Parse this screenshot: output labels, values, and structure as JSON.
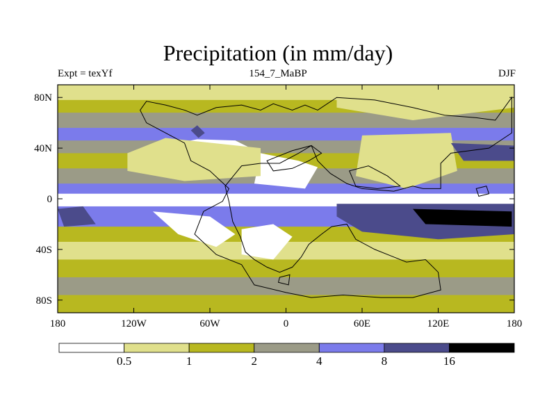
{
  "title": "Precipitation (in mm/day)",
  "left_label": "Expt = texYf",
  "center_label": "154_7_MaBP",
  "right_label": "DJF",
  "chart_data": {
    "type": "heatmap",
    "title": "Precipitation (in mm/day)",
    "xlim": [
      -180,
      180
    ],
    "ylim": [
      -90,
      90
    ],
    "x_ticks": [
      {
        "value": -180,
        "label": "180"
      },
      {
        "value": -120,
        "label": "120W"
      },
      {
        "value": -60,
        "label": "60W"
      },
      {
        "value": 0,
        "label": "0"
      },
      {
        "value": 60,
        "label": "60E"
      },
      {
        "value": 120,
        "label": "120E"
      },
      {
        "value": 180,
        "label": "180"
      }
    ],
    "y_ticks": [
      {
        "value": 80,
        "label": "80N"
      },
      {
        "value": 40,
        "label": "40N"
      },
      {
        "value": 0,
        "label": "0"
      },
      {
        "value": -40,
        "label": "40S"
      },
      {
        "value": -80,
        "label": "80S"
      }
    ],
    "colorbar": {
      "boundaries": [
        "0.5",
        "1",
        "2",
        "4",
        "8",
        "16"
      ],
      "colors": [
        "#ffffff",
        "#e0e08c",
        "#b8b820",
        "#9b9b87",
        "#7b7beb",
        "#4b4b8b",
        "#000000"
      ]
    },
    "zonal_bands": [
      {
        "lat_from": 90,
        "lat_to": 78,
        "level": 1
      },
      {
        "lat_from": 78,
        "lat_to": 68,
        "level": 2
      },
      {
        "lat_from": 68,
        "lat_to": 56,
        "level": 3
      },
      {
        "lat_from": 56,
        "lat_to": 46,
        "level": 4
      },
      {
        "lat_from": 46,
        "lat_to": 36,
        "level": 3
      },
      {
        "lat_from": 36,
        "lat_to": 24,
        "level": 2
      },
      {
        "lat_from": 24,
        "lat_to": 12,
        "level": 3
      },
      {
        "lat_from": 12,
        "lat_to": 4,
        "level": 4
      },
      {
        "lat_from": 4,
        "lat_to": -6,
        "level": 0
      },
      {
        "lat_from": -6,
        "lat_to": -22,
        "level": 4
      },
      {
        "lat_from": -22,
        "lat_to": -34,
        "level": 2
      },
      {
        "lat_from": -34,
        "lat_to": -48,
        "level": 1
      },
      {
        "lat_from": -48,
        "lat_to": -62,
        "level": 2
      },
      {
        "lat_from": -62,
        "lat_to": -76,
        "level": 3
      },
      {
        "lat_from": -76,
        "lat_to": -90,
        "level": 2
      }
    ],
    "regions": [
      {
        "name": "north-african-dry",
        "level": 0,
        "points": [
          [
            -95,
            42
          ],
          [
            -70,
            47
          ],
          [
            -40,
            46
          ],
          [
            -20,
            36
          ],
          [
            -20,
            24
          ],
          [
            -50,
            18
          ],
          [
            -80,
            26
          ]
        ]
      },
      {
        "name": "asian-dry",
        "level": 0,
        "points": [
          [
            -20,
            36
          ],
          [
            10,
            30
          ],
          [
            25,
            25
          ],
          [
            15,
            8
          ],
          [
            -25,
            12
          ]
        ]
      },
      {
        "name": "east-asian-dry",
        "level": 0,
        "points": [
          [
            70,
            42
          ],
          [
            90,
            48
          ],
          [
            120,
            42
          ],
          [
            125,
            28
          ],
          [
            95,
            14
          ],
          [
            70,
            22
          ]
        ]
      },
      {
        "name": "pacific-south-dry",
        "level": 0,
        "points": [
          [
            -105,
            -10
          ],
          [
            -60,
            -14
          ],
          [
            -40,
            -28
          ],
          [
            -55,
            -38
          ],
          [
            -85,
            -28
          ]
        ]
      },
      {
        "name": "south-america-dry",
        "level": 0,
        "points": [
          [
            -35,
            -24
          ],
          [
            -10,
            -20
          ],
          [
            5,
            -30
          ],
          [
            -10,
            -48
          ],
          [
            -35,
            -44
          ]
        ]
      },
      {
        "name": "north-light",
        "level": 1,
        "points": [
          [
            -125,
            36
          ],
          [
            -95,
            48
          ],
          [
            -20,
            40
          ],
          [
            -20,
            18
          ],
          [
            -80,
            14
          ],
          [
            -125,
            22
          ]
        ]
      },
      {
        "name": "ne-asia-light",
        "level": 1,
        "points": [
          [
            60,
            50
          ],
          [
            130,
            52
          ],
          [
            135,
            22
          ],
          [
            95,
            8
          ],
          [
            55,
            18
          ]
        ]
      },
      {
        "name": "arctic-light",
        "level": 1,
        "points": [
          [
            40,
            90
          ],
          [
            180,
            90
          ],
          [
            180,
            72
          ],
          [
            100,
            62
          ],
          [
            40,
            72
          ]
        ]
      },
      {
        "name": "tropical-wet",
        "level": 5,
        "points": [
          [
            40,
            -4
          ],
          [
            180,
            -4
          ],
          [
            180,
            -28
          ],
          [
            120,
            -32
          ],
          [
            60,
            -26
          ],
          [
            40,
            -14
          ]
        ]
      },
      {
        "name": "pacific-wet",
        "level": 6,
        "points": [
          [
            100,
            -8
          ],
          [
            178,
            -10
          ],
          [
            178,
            -22
          ],
          [
            110,
            -20
          ]
        ]
      },
      {
        "name": "east-wet",
        "level": 5,
        "points": [
          [
            130,
            44
          ],
          [
            180,
            42
          ],
          [
            180,
            30
          ],
          [
            140,
            30
          ]
        ]
      },
      {
        "name": "north-blue-spot",
        "level": 5,
        "points": [
          [
            -75,
            54
          ],
          [
            -70,
            58
          ],
          [
            -64,
            52
          ],
          [
            -69,
            48
          ]
        ]
      },
      {
        "name": "west-wet",
        "level": 5,
        "points": [
          [
            -180,
            -8
          ],
          [
            -160,
            -6
          ],
          [
            -150,
            -20
          ],
          [
            -175,
            -22
          ]
        ]
      }
    ],
    "coastlines": [
      {
        "name": "northern-continent",
        "points": [
          [
            -110,
            77
          ],
          [
            -95,
            74
          ],
          [
            -80,
            70
          ],
          [
            -70,
            66
          ],
          [
            -55,
            72
          ],
          [
            -35,
            74
          ],
          [
            -20,
            70
          ],
          [
            -10,
            75
          ],
          [
            5,
            70
          ],
          [
            15,
            74
          ],
          [
            25,
            70
          ],
          [
            40,
            80
          ],
          [
            70,
            78
          ],
          [
            100,
            72
          ],
          [
            125,
            66
          ],
          [
            150,
            64
          ],
          [
            165,
            62
          ],
          [
            178,
            80
          ],
          [
            178,
            52
          ],
          [
            160,
            40
          ],
          [
            130,
            36
          ],
          [
            122,
            28
          ],
          [
            122,
            8
          ],
          [
            108,
            8
          ],
          [
            100,
            10
          ],
          [
            85,
            6
          ],
          [
            60,
            8
          ],
          [
            48,
            12
          ],
          [
            35,
            20
          ],
          [
            25,
            30
          ],
          [
            20,
            42
          ],
          [
            10,
            36
          ],
          [
            -5,
            28
          ],
          [
            -20,
            28
          ],
          [
            -35,
            26
          ],
          [
            -48,
            10
          ],
          [
            -45,
            -2
          ],
          [
            -42,
            -18
          ],
          [
            -36,
            -30
          ],
          [
            -32,
            -42
          ],
          [
            -25,
            -48
          ],
          [
            -15,
            -54
          ],
          [
            -5,
            -58
          ],
          [
            5,
            -54
          ],
          [
            12,
            -46
          ],
          [
            18,
            -36
          ],
          [
            28,
            -28
          ],
          [
            36,
            -22
          ],
          [
            48,
            -20
          ],
          [
            55,
            -32
          ],
          [
            70,
            -40
          ],
          [
            85,
            -46
          ],
          [
            95,
            -50
          ],
          [
            110,
            -48
          ],
          [
            120,
            -58
          ],
          [
            122,
            -72
          ],
          [
            100,
            -78
          ],
          [
            75,
            -78
          ],
          [
            45,
            -76
          ],
          [
            20,
            -78
          ],
          [
            0,
            -74
          ],
          [
            -25,
            -68
          ],
          [
            -30,
            -60
          ],
          [
            -35,
            -52
          ],
          [
            -55,
            -44
          ],
          [
            -72,
            -28
          ],
          [
            -65,
            -10
          ],
          [
            -50,
            -2
          ],
          [
            -45,
            8
          ],
          [
            -60,
            22
          ],
          [
            -75,
            30
          ],
          [
            -80,
            44
          ],
          [
            -95,
            52
          ],
          [
            -110,
            60
          ],
          [
            -115,
            70
          ],
          [
            -110,
            77
          ]
        ]
      },
      {
        "name": "inner-sea",
        "points": [
          [
            -15,
            30
          ],
          [
            5,
            38
          ],
          [
            20,
            42
          ],
          [
            28,
            36
          ],
          [
            18,
            30
          ],
          [
            5,
            24
          ],
          [
            -10,
            22
          ]
        ]
      },
      {
        "name": "east-sea",
        "points": [
          [
            50,
            22
          ],
          [
            65,
            26
          ],
          [
            80,
            18
          ],
          [
            90,
            10
          ],
          [
            72,
            8
          ],
          [
            55,
            10
          ]
        ]
      },
      {
        "name": "small-island",
        "points": [
          [
            150,
            8
          ],
          [
            158,
            10
          ],
          [
            160,
            4
          ],
          [
            152,
            2
          ]
        ]
      },
      {
        "name": "south-island",
        "points": [
          [
            -5,
            -62
          ],
          [
            3,
            -60
          ],
          [
            2,
            -68
          ],
          [
            -6,
            -66
          ]
        ]
      }
    ]
  }
}
